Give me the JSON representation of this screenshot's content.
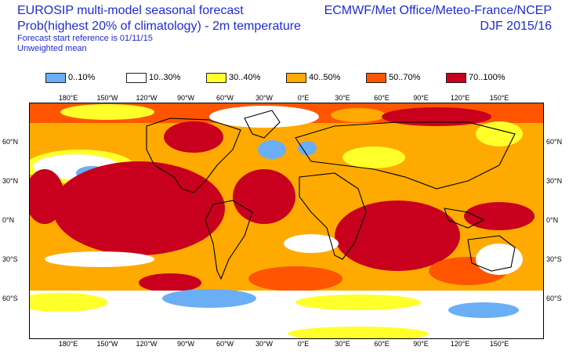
{
  "title": {
    "line1": "EUROSIP multi-model seasonal forecast",
    "line2": "Prob(highest 20% of climatology) - 2m temperature",
    "line3": "Forecast start reference is 01/11/15",
    "line4": "Unweighted mean",
    "right1": "ECMWF/Met Office/Meteo-France/NCEP",
    "right2": "DJF 2015/16"
  },
  "legend": [
    {
      "label": "0..10%",
      "color": "#6aaef5"
    },
    {
      "label": "10..30%",
      "color": "#ffffff"
    },
    {
      "label": "30..40%",
      "color": "#ffff2a"
    },
    {
      "label": "40..50%",
      "color": "#ffaa00"
    },
    {
      "label": "50..70%",
      "color": "#ff5500"
    },
    {
      "label": "70..100%",
      "color": "#c8001e"
    }
  ],
  "longitude_ticks": [
    "180°E",
    "150°W",
    "120°W",
    "90°W",
    "60°W",
    "30°W",
    "0°E",
    "30°E",
    "60°E",
    "90°E",
    "120°E",
    "150°E"
  ],
  "latitude_ticks": [
    "60°N",
    "30°N",
    "0°N",
    "30°S",
    "60°S"
  ]
}
